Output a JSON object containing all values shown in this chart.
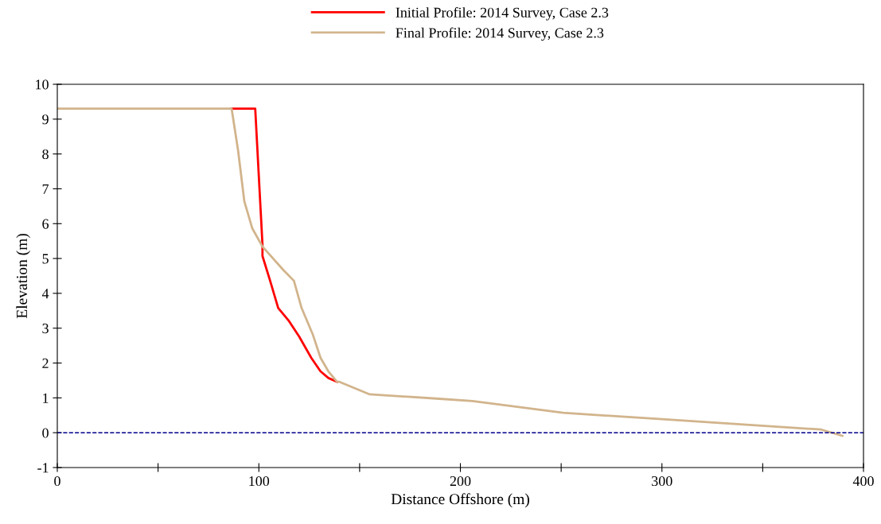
{
  "chart_data": {
    "type": "line",
    "xlabel": "Distance Offshore (m)",
    "ylabel": "Elevation (m)",
    "xlim": [
      0,
      400
    ],
    "xticks": [
      0,
      100,
      200,
      300,
      400,
      {
        "value": 50,
        "label": null
      },
      {
        "value": 150,
        "label": null
      },
      {
        "value": 250,
        "label": null
      },
      {
        "value": 350,
        "label": null
      }
    ],
    "ylim": [
      -1,
      10
    ],
    "yticks": [
      -1,
      0,
      1,
      2,
      3,
      4,
      5,
      6,
      7,
      8,
      9,
      10
    ],
    "series": [
      {
        "name": "Initial Profile: 2014 Survey, Case 2.3",
        "color": "#ff0000",
        "x": [
          86.5,
          98.2,
          101.8,
          101.8,
          105.6,
          109.6,
          115,
          120,
          126,
          130.6,
          134.5,
          138.8
        ],
        "values": [
          9.3,
          9.3,
          5.4,
          5.07,
          4.36,
          3.58,
          3.2,
          2.76,
          2.15,
          1.76,
          1.57,
          1.46
        ]
      },
      {
        "name": "Final Profile: 2014 Survey, Case 2.3",
        "color": "#d2b48c",
        "x": [
          0,
          86.5,
          89.7,
          92.8,
          96.7,
          101.8,
          112.3,
          117.4,
          121.2,
          126.7,
          130.6,
          134.5,
          138.8,
          140,
          155,
          188,
          206,
          251,
          300,
          336,
          379,
          389.5
        ],
        "values": [
          9.3,
          9.3,
          8.1,
          6.64,
          5.87,
          5.34,
          4.66,
          4.36,
          3.58,
          2.83,
          2.15,
          1.76,
          1.46,
          1.46,
          1.1,
          0.98,
          0.91,
          0.57,
          0.39,
          0.25,
          0.09,
          -0.09
        ]
      }
    ],
    "ref_lines": [
      {
        "axis": "y",
        "value": 0,
        "color": "#00008b",
        "line_style": "dashed"
      }
    ],
    "grid": false,
    "legend": "top",
    "line_style": "solid",
    "marker": "none"
  }
}
